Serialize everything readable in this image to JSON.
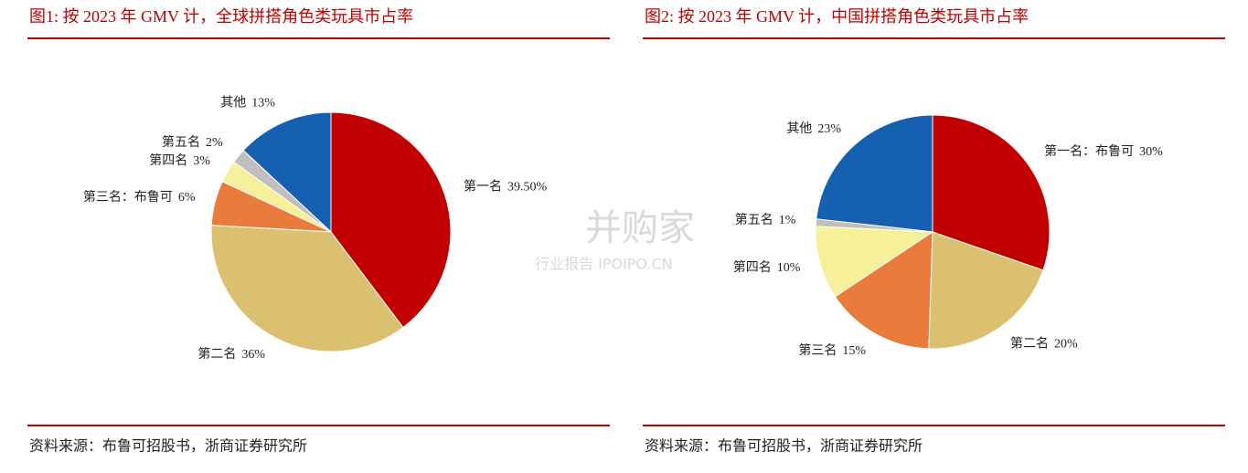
{
  "chart_data": [
    {
      "type": "pie",
      "title": "图1:  按 2023 年 GMV 计，全球拼搭角色类玩具市占率",
      "categories": [
        "第一名",
        "第二名",
        "第三名：布鲁可",
        "第四名",
        "第五名",
        "其他"
      ],
      "values": [
        39.5,
        36,
        6,
        3,
        2,
        13
      ],
      "value_labels": [
        "39.50%",
        "36%",
        "6%",
        "3%",
        "2%",
        "13%"
      ],
      "colors": [
        "#c00000",
        "#dbc06f",
        "#e97b3c",
        "#f7f09a",
        "#bfbfbf",
        "#1560b0"
      ],
      "source": "资料来源：布鲁可招股书，浙商证券研究所"
    },
    {
      "type": "pie",
      "title": "图2:  按 2023 年 GMV 计，中国拼搭角色类玩具市占率",
      "categories": [
        "第一名：布鲁可",
        "第二名",
        "第三名",
        "第四名",
        "第五名",
        "其他"
      ],
      "values": [
        30,
        20,
        15,
        10,
        1,
        23
      ],
      "value_labels": [
        "30%",
        "20%",
        "15%",
        "10%",
        "1%",
        "23%"
      ],
      "colors": [
        "#c00000",
        "#dbc06f",
        "#e97b3c",
        "#f7f09a",
        "#bfbfbf",
        "#1560b0"
      ],
      "source": "资料来源：布鲁可招股书，浙商证券研究所"
    }
  ],
  "watermark": {
    "brand": "并购家",
    "sub": "行业报告 IPOIPO.CN"
  }
}
